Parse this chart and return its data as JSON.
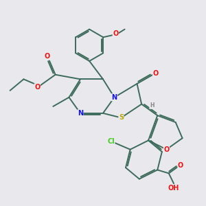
{
  "background_color": "#e8e8ed",
  "bond_color": "#3d6b5a",
  "bond_width": 1.4,
  "dbo": 0.06,
  "atom_colors": {
    "O": "#ee1111",
    "N": "#1111ee",
    "S": "#bbaa00",
    "Cl": "#44cc22",
    "H": "#888888"
  },
  "fs": 7.0
}
